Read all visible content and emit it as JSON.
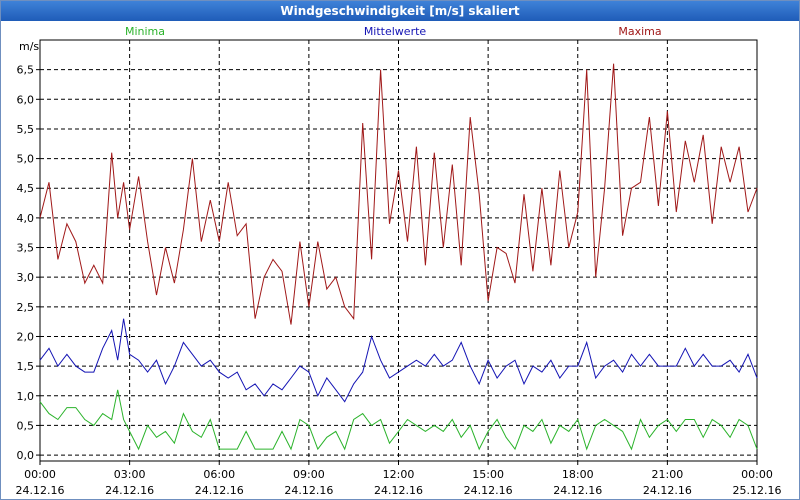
{
  "window": {
    "title": "Windgeschwindigkeit [m/s] skaliert"
  },
  "colors": {
    "minima": "#2bb32b",
    "mittel": "#1414b4",
    "maxima": "#a01818",
    "grid": "#000000",
    "frame": "#000000"
  },
  "chart_data": {
    "type": "line",
    "ylabel": "m/s",
    "ylim": [
      -0.1,
      7.0
    ],
    "yticks": [
      "0,0",
      "0,5",
      "1,0",
      "1,5",
      "2,0",
      "2,5",
      "3,0",
      "3,5",
      "4,0",
      "4,5",
      "5,0",
      "5,5",
      "6,0",
      "6,5"
    ],
    "ytick_values": [
      0,
      0.5,
      1,
      1.5,
      2,
      2.5,
      3,
      3.5,
      4,
      4.5,
      5,
      5.5,
      6,
      6.5
    ],
    "xlim": [
      0,
      24
    ],
    "xticks": [
      {
        "time": "00:00",
        "date": "24.12.16"
      },
      {
        "time": "03:00",
        "date": "24.12.16"
      },
      {
        "time": "06:00",
        "date": "24.12.16"
      },
      {
        "time": "09:00",
        "date": "24.12.16"
      },
      {
        "time": "12:00",
        "date": "24.12.16"
      },
      {
        "time": "15:00",
        "date": "24.12.16"
      },
      {
        "time": "18:00",
        "date": "24.12.16"
      },
      {
        "time": "21:00",
        "date": "24.12.16"
      },
      {
        "time": "00:00",
        "date": "25.12.16"
      }
    ],
    "xtick_hours": [
      0,
      3,
      6,
      9,
      12,
      15,
      18,
      21,
      24
    ],
    "series": [
      {
        "name": "Minima",
        "key": "minima",
        "x": [
          0,
          0.3,
          0.6,
          0.9,
          1.2,
          1.5,
          1.8,
          2.1,
          2.4,
          2.6,
          2.8,
          3.0,
          3.3,
          3.6,
          3.9,
          4.2,
          4.5,
          4.8,
          5.1,
          5.4,
          5.7,
          6.0,
          6.3,
          6.6,
          6.9,
          7.2,
          7.5,
          7.8,
          8.1,
          8.4,
          8.7,
          9.0,
          9.3,
          9.6,
          9.9,
          10.2,
          10.5,
          10.8,
          11.1,
          11.4,
          11.7,
          12.0,
          12.3,
          12.6,
          12.9,
          13.2,
          13.5,
          13.8,
          14.1,
          14.4,
          14.7,
          15.0,
          15.3,
          15.6,
          15.9,
          16.2,
          16.5,
          16.8,
          17.1,
          17.4,
          17.7,
          18.0,
          18.3,
          18.6,
          18.9,
          19.2,
          19.5,
          19.8,
          20.1,
          20.4,
          20.7,
          21.0,
          21.3,
          21.6,
          21.9,
          22.2,
          22.5,
          22.8,
          23.1,
          23.4,
          23.7,
          24.0
        ],
        "y": [
          0.9,
          0.7,
          0.6,
          0.8,
          0.8,
          0.6,
          0.5,
          0.7,
          0.6,
          1.1,
          0.6,
          0.4,
          0.1,
          0.5,
          0.3,
          0.4,
          0.2,
          0.7,
          0.4,
          0.3,
          0.6,
          0.1,
          0.1,
          0.1,
          0.4,
          0.1,
          0.1,
          0.1,
          0.4,
          0.1,
          0.6,
          0.5,
          0.1,
          0.3,
          0.4,
          0.1,
          0.6,
          0.7,
          0.5,
          0.6,
          0.2,
          0.4,
          0.6,
          0.5,
          0.4,
          0.5,
          0.4,
          0.6,
          0.3,
          0.5,
          0.1,
          0.4,
          0.6,
          0.3,
          0.1,
          0.5,
          0.4,
          0.6,
          0.2,
          0.5,
          0.4,
          0.6,
          0.1,
          0.5,
          0.6,
          0.5,
          0.4,
          0.1,
          0.6,
          0.3,
          0.5,
          0.6,
          0.4,
          0.6,
          0.6,
          0.3,
          0.6,
          0.5,
          0.3,
          0.6,
          0.5,
          0.1
        ]
      },
      {
        "name": "Mittelwerte",
        "key": "mittel",
        "x": [
          0,
          0.3,
          0.6,
          0.9,
          1.2,
          1.5,
          1.8,
          2.1,
          2.4,
          2.6,
          2.8,
          3.0,
          3.3,
          3.6,
          3.9,
          4.2,
          4.5,
          4.8,
          5.1,
          5.4,
          5.7,
          6.0,
          6.3,
          6.6,
          6.9,
          7.2,
          7.5,
          7.8,
          8.1,
          8.4,
          8.7,
          9.0,
          9.3,
          9.6,
          9.9,
          10.2,
          10.5,
          10.8,
          11.1,
          11.4,
          11.7,
          12.0,
          12.3,
          12.6,
          12.9,
          13.2,
          13.5,
          13.8,
          14.1,
          14.4,
          14.7,
          15.0,
          15.3,
          15.6,
          15.9,
          16.2,
          16.5,
          16.8,
          17.1,
          17.4,
          17.7,
          18.0,
          18.3,
          18.6,
          18.9,
          19.2,
          19.5,
          19.8,
          20.1,
          20.4,
          20.7,
          21.0,
          21.3,
          21.6,
          21.9,
          22.2,
          22.5,
          22.8,
          23.1,
          23.4,
          23.7,
          24.0
        ],
        "y": [
          1.6,
          1.8,
          1.5,
          1.7,
          1.5,
          1.4,
          1.4,
          1.8,
          2.1,
          1.6,
          2.3,
          1.7,
          1.6,
          1.4,
          1.6,
          1.2,
          1.5,
          1.9,
          1.7,
          1.5,
          1.6,
          1.4,
          1.3,
          1.4,
          1.1,
          1.2,
          1.0,
          1.2,
          1.1,
          1.3,
          1.5,
          1.4,
          1.0,
          1.3,
          1.1,
          0.9,
          1.2,
          1.4,
          2.0,
          1.6,
          1.3,
          1.4,
          1.5,
          1.6,
          1.5,
          1.7,
          1.5,
          1.6,
          1.9,
          1.5,
          1.2,
          1.6,
          1.3,
          1.5,
          1.6,
          1.2,
          1.5,
          1.4,
          1.6,
          1.3,
          1.5,
          1.5,
          1.9,
          1.3,
          1.5,
          1.6,
          1.4,
          1.7,
          1.5,
          1.7,
          1.5,
          1.5,
          1.5,
          1.8,
          1.5,
          1.7,
          1.5,
          1.5,
          1.6,
          1.4,
          1.7,
          1.3
        ]
      },
      {
        "name": "Maxima",
        "key": "maxima",
        "x": [
          0,
          0.3,
          0.6,
          0.9,
          1.2,
          1.5,
          1.8,
          2.1,
          2.4,
          2.6,
          2.8,
          3.0,
          3.3,
          3.6,
          3.9,
          4.2,
          4.5,
          4.8,
          5.1,
          5.4,
          5.7,
          6.0,
          6.3,
          6.6,
          6.9,
          7.2,
          7.5,
          7.8,
          8.1,
          8.4,
          8.7,
          9.0,
          9.3,
          9.6,
          9.9,
          10.2,
          10.5,
          10.8,
          11.1,
          11.4,
          11.7,
          12.0,
          12.3,
          12.6,
          12.9,
          13.2,
          13.5,
          13.8,
          14.1,
          14.4,
          14.7,
          15.0,
          15.3,
          15.6,
          15.9,
          16.2,
          16.5,
          16.8,
          17.1,
          17.4,
          17.7,
          18.0,
          18.3,
          18.6,
          18.9,
          19.2,
          19.5,
          19.8,
          20.1,
          20.4,
          20.7,
          21.0,
          21.3,
          21.6,
          21.9,
          22.2,
          22.5,
          22.8,
          23.1,
          23.4,
          23.7,
          24.0
        ],
        "y": [
          4.0,
          4.6,
          3.3,
          3.9,
          3.6,
          2.9,
          3.2,
          2.9,
          5.1,
          4.0,
          4.6,
          3.8,
          4.7,
          3.6,
          2.7,
          3.5,
          2.9,
          3.8,
          5.0,
          3.6,
          4.3,
          3.6,
          4.6,
          3.7,
          3.9,
          2.3,
          3.0,
          3.3,
          3.1,
          2.2,
          3.6,
          2.5,
          3.6,
          2.8,
          3.0,
          2.5,
          2.3,
          5.6,
          3.3,
          6.5,
          3.9,
          4.8,
          3.6,
          5.2,
          3.2,
          5.1,
          3.5,
          4.9,
          3.2,
          5.7,
          4.4,
          2.6,
          3.5,
          3.4,
          2.9,
          4.4,
          3.1,
          4.5,
          3.2,
          4.8,
          3.5,
          4.1,
          6.5,
          3.0,
          4.5,
          6.6,
          3.7,
          4.5,
          4.6,
          5.7,
          4.2,
          5.8,
          4.1,
          5.3,
          4.6,
          5.4,
          3.9,
          5.2,
          4.6,
          5.2,
          4.1,
          4.5
        ]
      }
    ]
  }
}
